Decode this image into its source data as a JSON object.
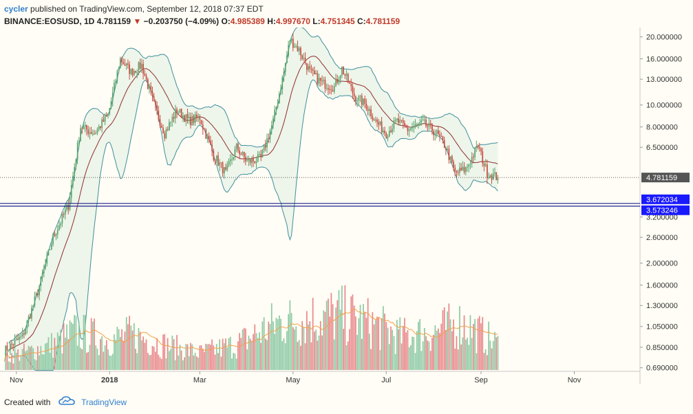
{
  "header": {
    "author": "cycler",
    "published_text": "published on TradingView.com, September 12, 2018 07:37 EDT",
    "symbol": "BINANCE:EOSUSD, 1D",
    "last_price": "4.781159",
    "change_arrow": "▼",
    "change": "−0.203750 (−4.09%)",
    "o_label": "O:",
    "o_value": "4.985389",
    "h_label": "H:",
    "h_value": "4.997670",
    "l_label": "L:",
    "l_value": "4.751345",
    "c_label": "C:",
    "c_value": "4.781159"
  },
  "footer": {
    "created_with": "Created with",
    "brand": "TradingView",
    "brand_icon": "tradingview-cloud-icon"
  },
  "colors": {
    "background": "#fffdf5",
    "up": "#59a36c",
    "down": "#c94b3f",
    "vol_up": "#8cc9a3",
    "vol_down": "#e8868a",
    "band": "#3e8f9e",
    "band_fill": "#eef5ea",
    "basis": "#8e2d2d",
    "vol_ma": "#f3a14b",
    "hline": "#1b1f8c",
    "price_tag": "#555555",
    "hline_tag": "#1a1aff"
  },
  "chart_data": {
    "type": "candlestick",
    "scale": "log",
    "y_ticks": [
      20,
      16,
      13,
      10,
      8,
      6.5,
      3.2,
      2.6,
      2,
      1.6,
      1.3,
      1.05,
      0.85,
      0.69
    ],
    "y_tick_labels": [
      "20.000000",
      "16.000000",
      "13.000000",
      "10.000000",
      "8.000000",
      "6.500000",
      "3.200000",
      "2.600000",
      "2.000000",
      "1.600000",
      "1.300000",
      "1.050000",
      "0.850000",
      "0.690000"
    ],
    "x_tick_labels": [
      "Nov",
      "2018",
      "Mar",
      "May",
      "Jul",
      "Sep",
      "Nov"
    ],
    "x_tick_dates": [
      "2017-11-01",
      "2018-01-01",
      "2018-03-01",
      "2018-05-01",
      "2018-07-01",
      "2018-09-01",
      "2018-11-01"
    ],
    "date_range": [
      "2017-10-24",
      "2018-12-14"
    ],
    "last_date": "2018-09-12",
    "y_range": [
      0.665,
      22
    ],
    "last_price": 4.781159,
    "last_price_label": "4.781159",
    "hlines": [
      {
        "value": 3.672034,
        "label": "3.672034"
      },
      {
        "value": 3.573246,
        "label": "3.573246"
      }
    ],
    "indicators": [
      "Bollinger Bands",
      "Volume",
      "Volume MA"
    ],
    "grid": false,
    "price_points": [
      [
        "2017-10-24",
        0.82
      ],
      [
        "2017-11-05",
        0.95
      ],
      [
        "2017-11-15",
        1.5
      ],
      [
        "2017-11-25",
        2.6
      ],
      [
        "2017-12-05",
        3.6
      ],
      [
        "2017-12-13",
        8.0
      ],
      [
        "2017-12-22",
        7.5
      ],
      [
        "2017-12-31",
        9.0
      ],
      [
        "2018-01-08",
        16.0
      ],
      [
        "2018-01-15",
        14.0
      ],
      [
        "2018-01-22",
        15.0
      ],
      [
        "2018-01-30",
        10.0
      ],
      [
        "2018-02-06",
        7.5
      ],
      [
        "2018-02-14",
        9.5
      ],
      [
        "2018-02-22",
        8.5
      ],
      [
        "2018-03-01",
        8.8
      ],
      [
        "2018-03-10",
        6.0
      ],
      [
        "2018-03-18",
        5.0
      ],
      [
        "2018-03-25",
        6.5
      ],
      [
        "2018-04-01",
        5.6
      ],
      [
        "2018-04-10",
        5.8
      ],
      [
        "2018-04-18",
        8.5
      ],
      [
        "2018-04-25",
        14.0
      ],
      [
        "2018-04-29",
        19.5
      ],
      [
        "2018-05-05",
        17.5
      ],
      [
        "2018-05-12",
        14.0
      ],
      [
        "2018-05-20",
        12.5
      ],
      [
        "2018-05-28",
        12.0
      ],
      [
        "2018-06-02",
        14.5
      ],
      [
        "2018-06-10",
        11.0
      ],
      [
        "2018-06-18",
        10.0
      ],
      [
        "2018-06-24",
        8.5
      ],
      [
        "2018-07-01",
        7.5
      ],
      [
        "2018-07-08",
        8.5
      ],
      [
        "2018-07-15",
        7.8
      ],
      [
        "2018-07-25",
        8.3
      ],
      [
        "2018-08-02",
        7.6
      ],
      [
        "2018-08-09",
        6.5
      ],
      [
        "2018-08-15",
        5.0
      ],
      [
        "2018-08-22",
        5.2
      ],
      [
        "2018-08-30",
        6.6
      ],
      [
        "2018-09-05",
        5.0
      ],
      [
        "2018-09-12",
        4.781159
      ]
    ],
    "volume_points": [
      [
        "2017-10-24",
        0.15
      ],
      [
        "2017-11-10",
        0.22
      ],
      [
        "2017-11-25",
        0.3
      ],
      [
        "2017-12-10",
        0.45
      ],
      [
        "2018-01-01",
        0.35
      ],
      [
        "2018-01-15",
        0.42
      ],
      [
        "2018-02-05",
        0.3
      ],
      [
        "2018-03-01",
        0.2
      ],
      [
        "2018-03-25",
        0.3
      ],
      [
        "2018-04-20",
        0.55
      ],
      [
        "2018-05-10",
        0.6
      ],
      [
        "2018-06-01",
        0.65
      ],
      [
        "2018-06-20",
        0.55
      ],
      [
        "2018-07-10",
        0.4
      ],
      [
        "2018-08-01",
        0.45
      ],
      [
        "2018-08-20",
        0.55
      ],
      [
        "2018-09-12",
        0.3
      ]
    ]
  }
}
